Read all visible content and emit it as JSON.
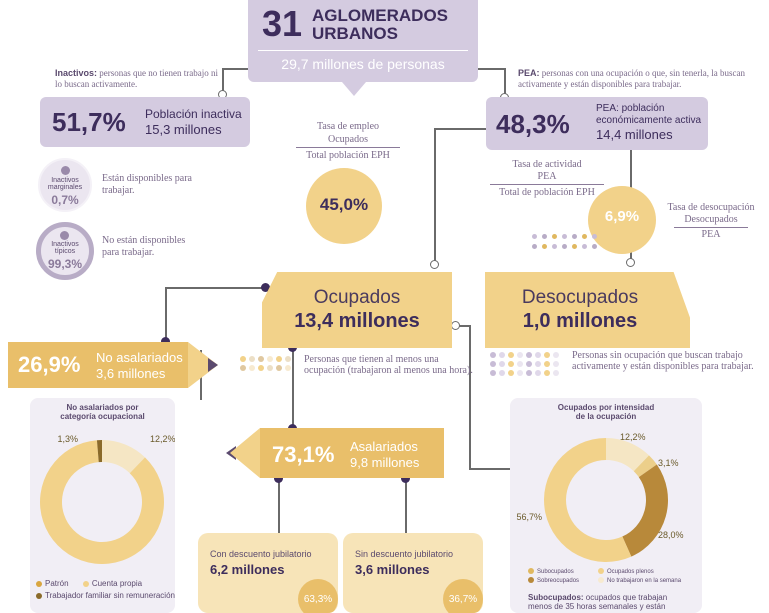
{
  "header": {
    "number": "31",
    "title_line1": "AGLOMERADOS",
    "title_line2": "URBANOS",
    "subtitle": "29,7 millones de personas"
  },
  "inactivos": {
    "definition_term": "Inactivos:",
    "definition_text": "personas que no tienen trabajo ni lo buscan activamente.",
    "percent": "51,7%",
    "label_line1": "Población inactiva",
    "label_line2": "15,3 millones",
    "marginales_label_1": "Inactivos",
    "marginales_label_2": "marginales",
    "marginales_percent": "0,7%",
    "marginales_text": "Están disponibles para trabajar.",
    "tipicos_label_1": "Inactivos",
    "tipicos_label_2": "típicos",
    "tipicos_percent": "99,3%",
    "tipicos_text": "No están disponibles para trabajar."
  },
  "pea": {
    "definition_term": "PEA:",
    "definition_text": "personas con una ocupación o que, sin tenerla, la buscan activamente y están disponibles para trabajar.",
    "percent": "48,3%",
    "label_line1": "PEA: población",
    "label_line2": "económicamente activa",
    "label_line3": "14,4 millones",
    "tasa_actividad_title": "Tasa de actividad",
    "tasa_actividad_num": "PEA",
    "tasa_actividad_den": "Total de población EPH"
  },
  "tasa_empleo": {
    "title": "Tasa de empleo",
    "numerator": "Ocupados",
    "denominator": "Total población EPH",
    "value": "45,0%"
  },
  "tasa_desocupacion": {
    "title": "Tasa de desocupación",
    "numerator": "Desocupados",
    "denominator": "PEA",
    "value": "6,9%"
  },
  "ocupados": {
    "title": "Ocupados",
    "value": "13,4 millones",
    "description": "Personas que tienen al menos una ocupación (trabajaron al menos una hora)."
  },
  "desocupados": {
    "title": "Desocupados",
    "value": "1,0 millones",
    "description": "Personas sin ocupación que buscan trabajo activamente y están disponibles para trabajar."
  },
  "no_asalariados": {
    "percent": "26,9%",
    "label_line1": "No asalariados",
    "label_line2": "3,6 millones",
    "panel_title_1": "No asalariados por",
    "panel_title_2": "categoría ocupacional",
    "legend": [
      "Patrón",
      "Cuenta propia",
      "Trabajador familiar sin remuneración"
    ],
    "legend_colors": [
      "#d9a640",
      "#f2d28a",
      "#8a6a2a"
    ]
  },
  "asalariados": {
    "percent": "73,1%",
    "label_line1": "Asalariados",
    "label_line2": "9,8 millones",
    "con_descuento_title": "Con descuento jubilatorio",
    "con_descuento_value": "6,2 millones",
    "con_descuento_percent": "63,3%",
    "sin_descuento_title": "Sin descuento jubilatorio",
    "sin_descuento_value": "3,6 millones",
    "sin_descuento_percent": "36,7%"
  },
  "intensidad": {
    "panel_title_1": "Ocupados por intensidad",
    "panel_title_2": "de la ocupación",
    "legend": [
      "Subocupados",
      "Ocupados plenos",
      "Sobreocupados",
      "No trabajaron en la semana"
    ],
    "legend_colors": [
      "#e0b860",
      "#f2d28a",
      "#b8893a",
      "#f7ead0"
    ],
    "footnote_term": "Subocupados:",
    "footnote_text": "ocupados que trabajan menos de 35 horas semanales y están"
  },
  "chart_data": [
    {
      "type": "pie",
      "categories": [
        "Patrón",
        "Cuenta propia",
        "Trabajador familiar sin remuneración"
      ],
      "values": [
        12.2,
        86.5,
        1.3
      ],
      "labels": [
        "12,2%",
        "86,5%",
        "1,3%"
      ],
      "colors": [
        "#f5e6c4",
        "#f2d28a",
        "#8a6a2a"
      ],
      "title": "No asalariados por categoría ocupacional"
    },
    {
      "type": "pie",
      "categories": [
        "Subocupados",
        "No trabajaron en la semana",
        "Sobreocupados",
        "Ocupados plenos"
      ],
      "values": [
        12.2,
        3.1,
        28.0,
        56.7
      ],
      "labels": [
        "12,2%",
        "3,1%",
        "28,0%",
        "56,7%"
      ],
      "colors": [
        "#f5e6c4",
        "#eccf8a",
        "#b8893a",
        "#f2d28a"
      ],
      "title": "Ocupados por intensidad de la ocupación"
    }
  ]
}
